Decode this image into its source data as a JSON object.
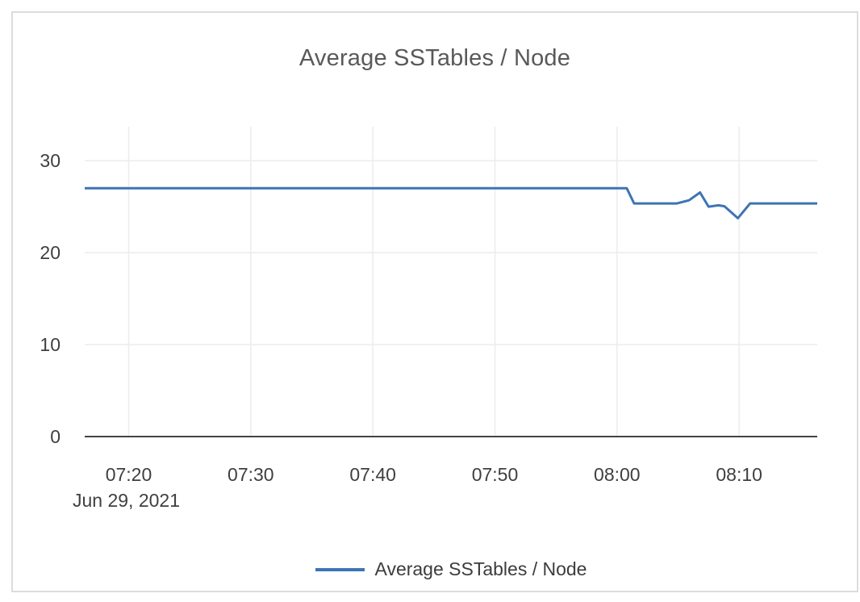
{
  "card": {
    "background": "#ffffff",
    "border_color": "#dcdcdc"
  },
  "colors": {
    "series_blue": "#3d74b5",
    "gridline": "#ececec",
    "axis_line": "#444444",
    "title_text": "#595959",
    "tick_text": "#3f3f3f",
    "legend_text": "#3c3c3c"
  },
  "chart_data": {
    "type": "line",
    "title": "Average SSTables / Node",
    "xlabel": "",
    "ylabel": "",
    "grid": true,
    "legend_position": "bottom-center",
    "x_axis": {
      "date_label": "Jun 29, 2021",
      "unit": "time of day (minutes after 07:00, Jun 29 2021)",
      "range_minutes": [
        16.4,
        76.4
      ],
      "ticks": [
        {
          "label": "07:20",
          "t": 20
        },
        {
          "label": "07:30",
          "t": 30
        },
        {
          "label": "07:40",
          "t": 40
        },
        {
          "label": "07:50",
          "t": 50
        },
        {
          "label": "08:00",
          "t": 60
        },
        {
          "label": "08:10",
          "t": 70
        }
      ]
    },
    "y_axis": {
      "range": [
        0,
        33.7
      ],
      "ticks": [
        0,
        10,
        20,
        30
      ]
    },
    "series": [
      {
        "name": "Average SSTables / Node",
        "color": "#3d74b5",
        "points": [
          {
            "t": 16.4,
            "v": 27.0
          },
          {
            "t": 60.8,
            "v": 27.0
          },
          {
            "t": 61.4,
            "v": 25.35
          },
          {
            "t": 64.9,
            "v": 25.35
          },
          {
            "t": 65.9,
            "v": 25.7
          },
          {
            "t": 66.8,
            "v": 26.55
          },
          {
            "t": 67.5,
            "v": 25.0
          },
          {
            "t": 68.3,
            "v": 25.15
          },
          {
            "t": 68.8,
            "v": 25.05
          },
          {
            "t": 69.9,
            "v": 23.75
          },
          {
            "t": 70.9,
            "v": 25.35
          },
          {
            "t": 76.4,
            "v": 25.35
          }
        ]
      }
    ]
  },
  "legend": {
    "label": "Average SSTables / Node"
  }
}
